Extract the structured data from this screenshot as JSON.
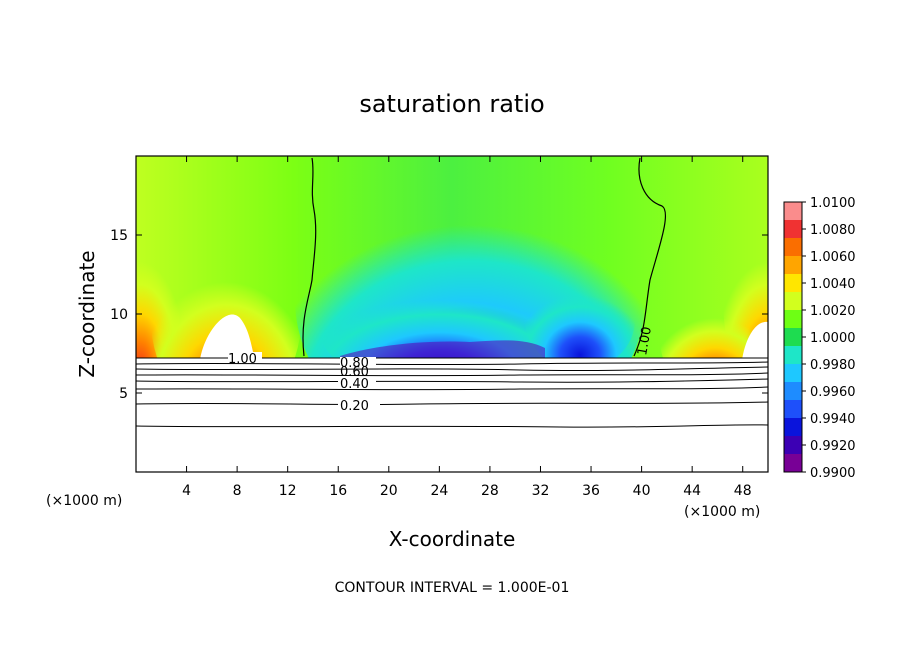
{
  "chart_data": {
    "type": "heatmap",
    "title": "saturation ratio",
    "xlabel": "X-coordinate",
    "ylabel": "Z-coordinate",
    "x_units_left": "(×1000 m)",
    "x_units_right": "(×1000 m)",
    "xlim": [
      0,
      50
    ],
    "ylim": [
      0,
      20
    ],
    "x_ticks": [
      4,
      8,
      12,
      16,
      20,
      24,
      28,
      32,
      36,
      40,
      44,
      48
    ],
    "y_ticks": [
      5,
      10,
      15
    ],
    "colorbar": {
      "labels": [
        "1.0100",
        "1.0080",
        "1.0060",
        "1.0040",
        "1.0020",
        "1.0000",
        "0.9980",
        "0.9960",
        "0.9940",
        "0.9920",
        "0.9900"
      ],
      "min": 0.99,
      "max": 1.01,
      "colors": [
        "#fa8c8c",
        "#f03232",
        "#fa6e00",
        "#ffa500",
        "#ffe600",
        "#d2ff1e",
        "#6eff14",
        "#1edc50",
        "#1ee6c8",
        "#1ec8ff",
        "#1e8cff",
        "#1e50fa",
        "#0a14dc",
        "#3c00b4",
        "#780096"
      ]
    },
    "contour_labels": [
      {
        "text": "1.00"
      },
      {
        "text": "0.80"
      },
      {
        "text": "0.60"
      },
      {
        "text": "0.40"
      },
      {
        "text": "0.20"
      },
      {
        "text": "1.00"
      }
    ],
    "contour_interval_text": "CONTOUR INTERVAL = 1.000E-01"
  }
}
